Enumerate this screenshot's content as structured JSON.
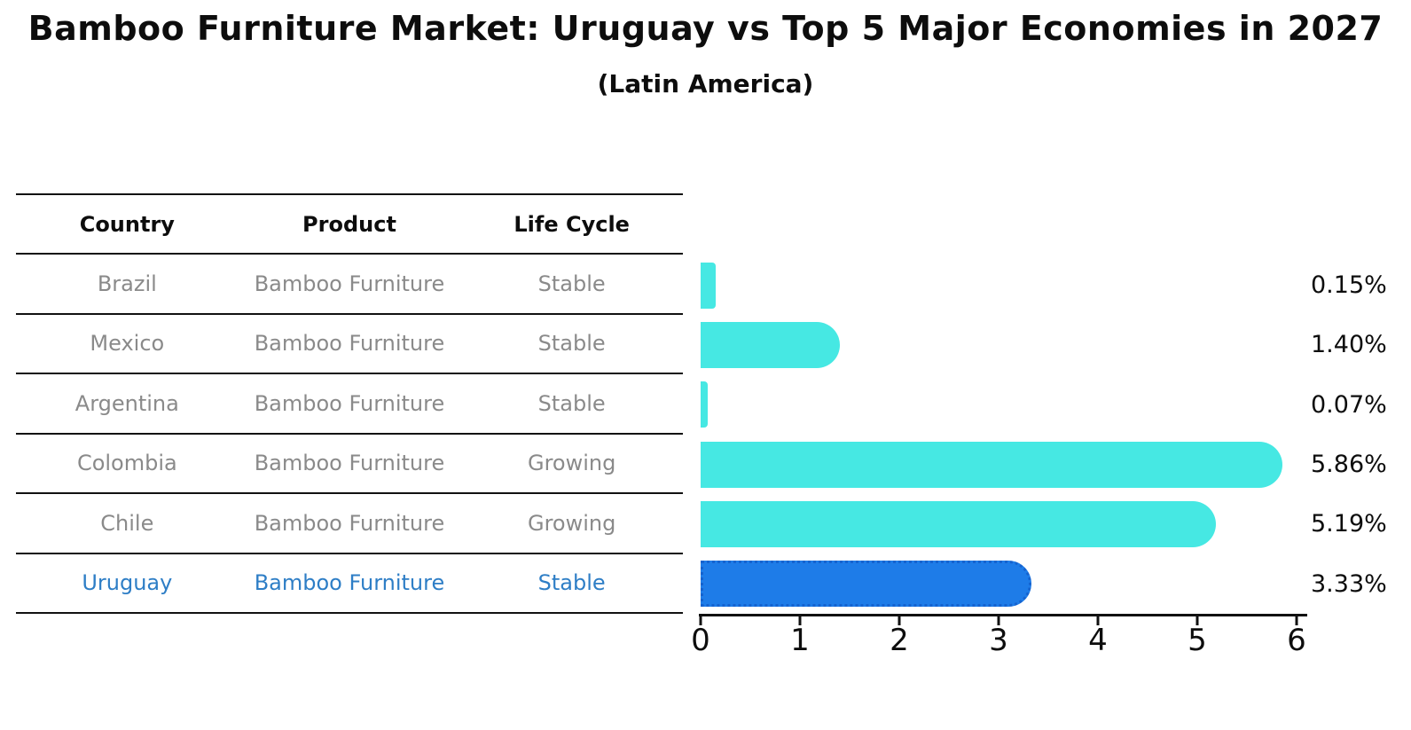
{
  "title": "Bamboo Furniture Market: Uruguay vs Top 5 Major Economies in 2027",
  "subtitle": "(Latin America)",
  "table": {
    "headers": [
      "Country",
      "Product",
      "Life Cycle"
    ]
  },
  "rows": [
    {
      "country": "Brazil",
      "product": "Bamboo Furniture",
      "life_cycle": "Stable",
      "value": 0.15,
      "share_label": "0.15%",
      "highlighted": false
    },
    {
      "country": "Mexico",
      "product": "Bamboo Furniture",
      "life_cycle": "Stable",
      "value": 1.4,
      "share_label": "1.40%",
      "highlighted": false
    },
    {
      "country": "Argentina",
      "product": "Bamboo Furniture",
      "life_cycle": "Stable",
      "value": 0.07,
      "share_label": "0.07%",
      "highlighted": false
    },
    {
      "country": "Colombia",
      "product": "Bamboo Furniture",
      "life_cycle": "Growing",
      "value": 5.86,
      "share_label": "5.86%",
      "highlighted": false
    },
    {
      "country": "Chile",
      "product": "Bamboo Furniture",
      "life_cycle": "Growing",
      "value": 5.19,
      "share_label": "5.19%",
      "highlighted": false
    },
    {
      "country": "Uruguay",
      "product": "Bamboo Furniture",
      "life_cycle": "Stable",
      "value": 3.33,
      "share_label": "3.33%",
      "highlighted": true
    }
  ],
  "axis": {
    "max": 6,
    "ticks": [
      "0",
      "1",
      "2",
      "3",
      "4",
      "5",
      "6"
    ]
  },
  "colors": {
    "text": "#0d0d0d",
    "muted_text": "#8a8a8a",
    "line": "#111111",
    "bar": "#46e8e3",
    "highlight_bar": "#1e7ce8",
    "highlight_border": "#1563cf",
    "highlight_text": "#2e7ec6"
  },
  "chart_data": {
    "type": "bar",
    "orientation": "horizontal",
    "title": "Bamboo Furniture Market: Uruguay vs Top 5 Major Economies in 2027",
    "subtitle": "(Latin America)",
    "categories": [
      "Brazil",
      "Mexico",
      "Argentina",
      "Colombia",
      "Chile",
      "Uruguay"
    ],
    "series": [
      {
        "name": "Market value (%)",
        "values": [
          0.15,
          1.4,
          0.07,
          5.86,
          5.19,
          3.33
        ]
      }
    ],
    "value_labels": [
      "0.15%",
      "1.40%",
      "0.07%",
      "5.86%",
      "5.19%",
      "3.33%"
    ],
    "xlim": [
      0,
      6.2
    ],
    "x_ticks": [
      0,
      1,
      2,
      3,
      4,
      5,
      6
    ],
    "grid": false,
    "legend": false,
    "highlight_index": 5,
    "table_columns": [
      "Country",
      "Product",
      "Life Cycle"
    ],
    "table_rows": [
      [
        "Brazil",
        "Bamboo Furniture",
        "Stable"
      ],
      [
        "Mexico",
        "Bamboo Furniture",
        "Stable"
      ],
      [
        "Argentina",
        "Bamboo Furniture",
        "Stable"
      ],
      [
        "Colombia",
        "Bamboo Furniture",
        "Growing"
      ],
      [
        "Chile",
        "Bamboo Furniture",
        "Growing"
      ],
      [
        "Uruguay",
        "Bamboo Furniture",
        "Stable"
      ]
    ]
  }
}
